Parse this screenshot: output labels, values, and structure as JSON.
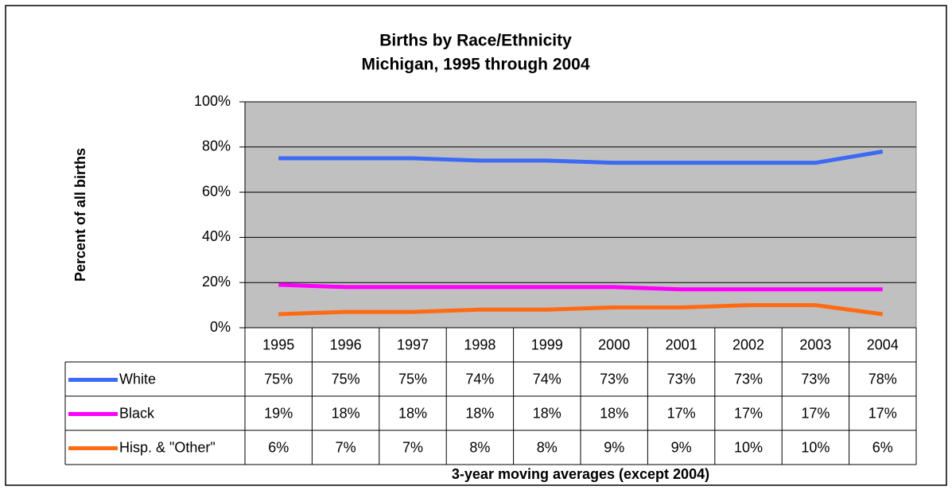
{
  "chart_data": {
    "type": "line",
    "title": "Births by Race/Ethnicity",
    "subtitle": "Michigan, 1995 through 2004",
    "y_label": "Percent of all births",
    "x_label": "3-year moving averages (except 2004)",
    "categories": [
      "1995",
      "1996",
      "1997",
      "1998",
      "1999",
      "2000",
      "2001",
      "2002",
      "2003",
      "2004"
    ],
    "series": [
      {
        "name": "White",
        "color": "#3d6af5",
        "values": [
          75,
          75,
          75,
          74,
          74,
          73,
          73,
          73,
          73,
          78
        ],
        "value_labels": [
          "75%",
          "75%",
          "75%",
          "74%",
          "74%",
          "73%",
          "73%",
          "73%",
          "73%",
          "78%"
        ]
      },
      {
        "name": "Black",
        "color": "#ff00ff",
        "values": [
          19,
          18,
          18,
          18,
          18,
          18,
          17,
          17,
          17,
          17
        ],
        "value_labels": [
          "19%",
          "18%",
          "18%",
          "18%",
          "18%",
          "18%",
          "17%",
          "17%",
          "17%",
          "17%"
        ]
      },
      {
        "name": "Hisp. & \"Other\"",
        "color": "#ff6a13",
        "values": [
          6,
          7,
          7,
          8,
          8,
          9,
          9,
          10,
          10,
          6
        ],
        "value_labels": [
          "6%",
          "7%",
          "7%",
          "8%",
          "8%",
          "9%",
          "9%",
          "10%",
          "10%",
          "6%"
        ]
      }
    ],
    "ylim": [
      0,
      100
    ],
    "yticks": [
      {
        "value": 0,
        "label": "0%"
      },
      {
        "value": 20,
        "label": "20%"
      },
      {
        "value": 40,
        "label": "40%"
      },
      {
        "value": 60,
        "label": "60%"
      },
      {
        "value": 80,
        "label": "80%"
      },
      {
        "value": 100,
        "label": "100%"
      }
    ],
    "grid": true,
    "plot_background": "#c0c0c0"
  }
}
